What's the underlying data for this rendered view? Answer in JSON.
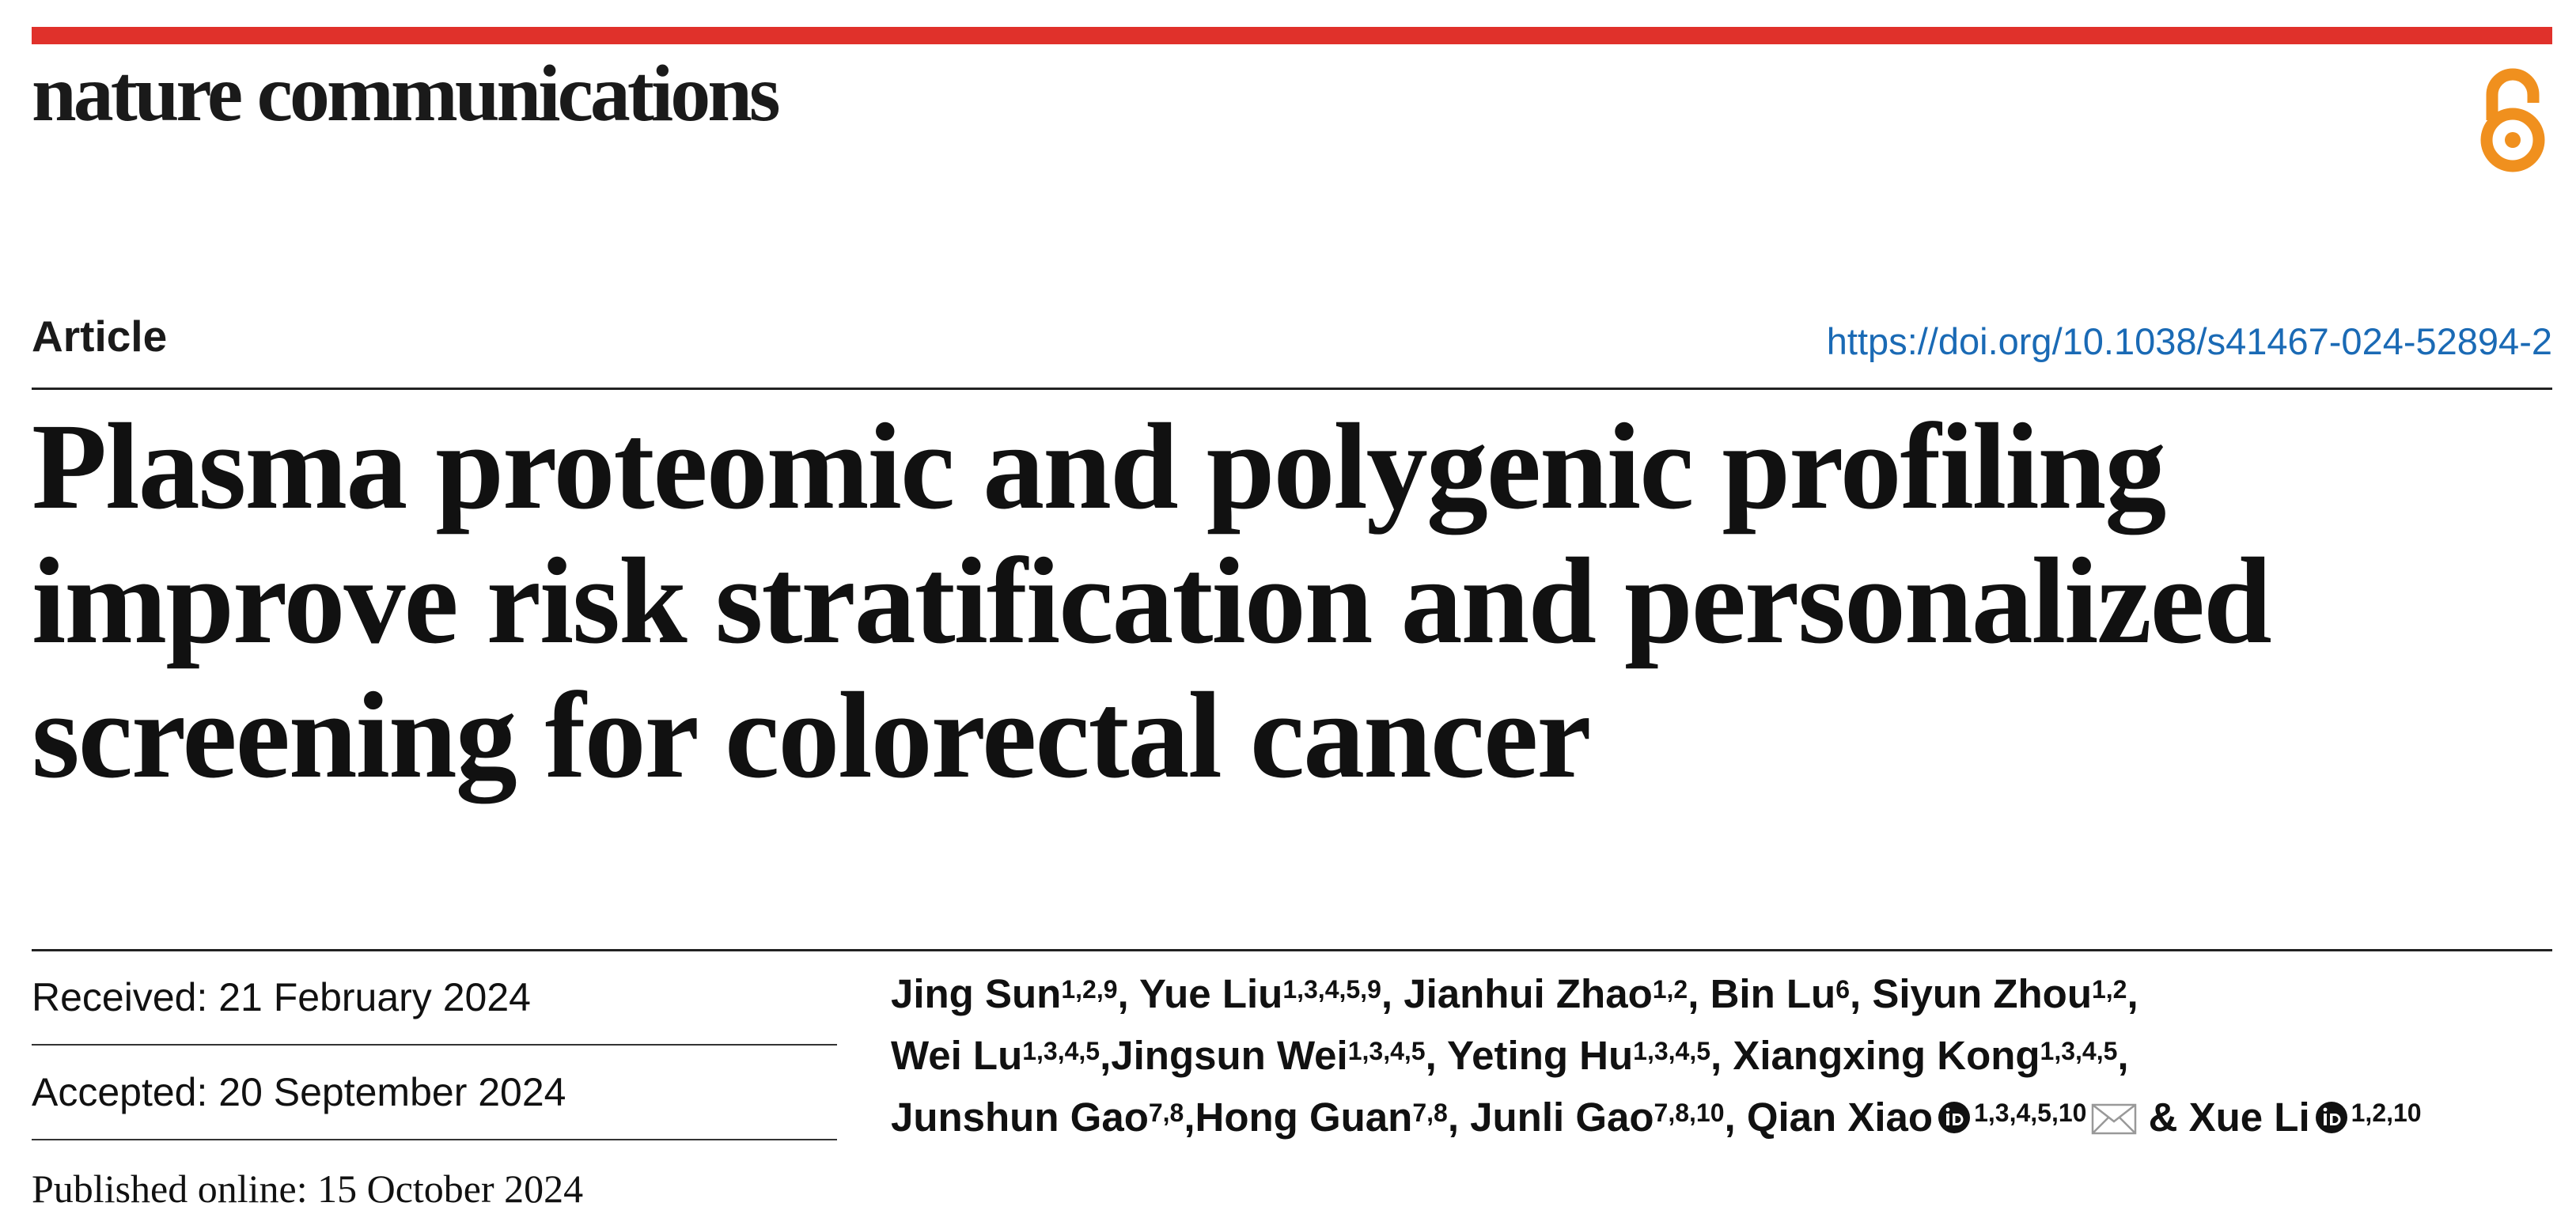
{
  "header": {
    "journal": "nature communications",
    "accent_color": "#e0312b",
    "open_access_icon": "open-access-lock-icon",
    "open_access_color": "#f0901e"
  },
  "article": {
    "type": "Article",
    "doi": "https://doi.org/10.1038/s41467-024-52894-2",
    "link_color": "#1a6ab5",
    "title": "Plasma proteomic and polygenic profiling improve risk stratification and personalized screening for colorectal cancer"
  },
  "dates": {
    "received": "Received: 21 February 2024",
    "accepted": "Accepted: 20 September 2024",
    "published": "Published online: 15 October 2024"
  },
  "authors": [
    {
      "name": "Jing Sun",
      "aff": "1,2,9",
      "sep": ", "
    },
    {
      "name": "Yue Liu",
      "aff": "1,3,4,5,9",
      "sep": ", "
    },
    {
      "name": "Jianhui Zhao",
      "aff": "1,2",
      "sep": ", "
    },
    {
      "name": "Bin Lu",
      "aff": "6",
      "sep": ", "
    },
    {
      "name": "Siyun Zhou",
      "aff": "1,2",
      "sep": ", "
    },
    {
      "name": "Wei Lu",
      "aff": "1,3,4,5",
      "sep": ","
    },
    {
      "name": "Jingsun Wei",
      "aff": "1,3,4,5",
      "sep": ", "
    },
    {
      "name": "Yeting Hu",
      "aff": "1,3,4,5",
      "sep": ", "
    },
    {
      "name": "Xiangxing Kong",
      "aff": "1,3,4,5",
      "sep": ", "
    },
    {
      "name": "Junshun Gao",
      "aff": "7,8",
      "sep": ","
    },
    {
      "name": "Hong Guan",
      "aff": "7,8",
      "sep": ", "
    },
    {
      "name": "Junli Gao",
      "aff": "7,8,10",
      "sep": ", "
    },
    {
      "name": "Qian Xiao",
      "aff": "1,3,4,5,10",
      "orcid": true,
      "corresponding": true,
      "sep": " & "
    },
    {
      "name": "Xue Li",
      "aff": "1,2,10",
      "orcid": true,
      "sep": ""
    }
  ]
}
